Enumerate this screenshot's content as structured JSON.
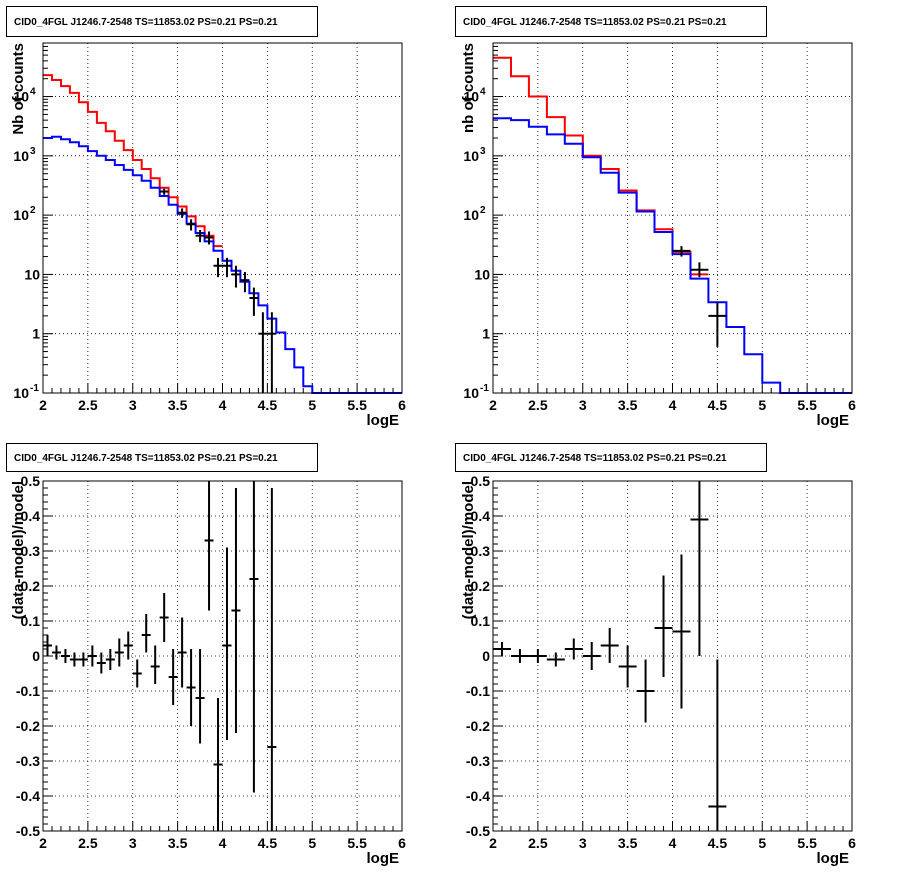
{
  "chart_data": [
    {
      "type": "line",
      "title": "CID0_4FGL J1246.7-2548 TS=11853.02 PS=0.21 PS=0.21",
      "xlabel": "logE",
      "ylabel": "Nb of counts",
      "xlim": [
        2,
        6
      ],
      "ylim": [
        0.1,
        80000
      ],
      "yscale": "log",
      "grid": true,
      "xticks": [
        "2",
        "2.5",
        "3",
        "3.5",
        "4",
        "4.5",
        "5",
        "5.5",
        "6"
      ],
      "yticks": [
        {
          "v": 0.1,
          "base": "10",
          "exp": "-1"
        },
        {
          "v": 1,
          "label": "1"
        },
        {
          "v": 10,
          "label": "10"
        },
        {
          "v": 100,
          "base": "10",
          "exp": "2"
        },
        {
          "v": 1000,
          "base": "10",
          "exp": "3"
        },
        {
          "v": 10000,
          "base": "10",
          "exp": "4"
        }
      ],
      "bin_width": 0.1,
      "series": [
        {
          "color": "#ff0000",
          "x": [
            2.0,
            2.1,
            2.2,
            2.3,
            2.4,
            2.5,
            2.6,
            2.7,
            2.8,
            2.9,
            3.0,
            3.1,
            3.2,
            3.3,
            3.4,
            3.5,
            3.6,
            3.7,
            3.8,
            3.9
          ],
          "values": [
            23000,
            19000,
            15000,
            11500,
            8000,
            5500,
            3600,
            2600,
            1800,
            1250,
            850,
            600,
            420,
            290,
            200,
            140,
            95,
            65,
            45,
            30
          ]
        },
        {
          "color": "#0000ff",
          "x": [
            2.0,
            2.1,
            2.2,
            2.3,
            2.4,
            2.5,
            2.6,
            2.7,
            2.8,
            2.9,
            3.0,
            3.1,
            3.2,
            3.3,
            3.4,
            3.5,
            3.6,
            3.7,
            3.8,
            3.9,
            4.0,
            4.1,
            4.2,
            4.3,
            4.4,
            4.5,
            4.6,
            4.7,
            4.8,
            4.9,
            5.0,
            5.1,
            5.2,
            5.3,
            5.4,
            5.5,
            5.6,
            5.7,
            5.8,
            5.9
          ],
          "values": [
            2000,
            2100,
            1900,
            1700,
            1450,
            1200,
            1000,
            850,
            700,
            580,
            470,
            380,
            290,
            210,
            150,
            105,
            72,
            50,
            36,
            25,
            17,
            11.5,
            7.5,
            4.8,
            3.0,
            1.8,
            1.05,
            0.55,
            0.27,
            0.13,
            0.1,
            0.1,
            0.1,
            0.1,
            0.1,
            0.1,
            0.1,
            0.1,
            0.1,
            0.1
          ]
        }
      ],
      "points": [
        {
          "x": 3.35,
          "y": 250,
          "lo": 220,
          "hi": 280
        },
        {
          "x": 3.55,
          "y": 110,
          "lo": 90,
          "hi": 130
        },
        {
          "x": 3.65,
          "y": 70,
          "lo": 55,
          "hi": 85
        },
        {
          "x": 3.75,
          "y": 45,
          "lo": 35,
          "hi": 56
        },
        {
          "x": 3.85,
          "y": 42,
          "lo": 32,
          "hi": 53
        },
        {
          "x": 3.95,
          "y": 14,
          "lo": 9,
          "hi": 19
        },
        {
          "x": 4.05,
          "y": 14,
          "lo": 9,
          "hi": 19
        },
        {
          "x": 4.15,
          "y": 10,
          "lo": 6,
          "hi": 14
        },
        {
          "x": 4.25,
          "y": 8,
          "lo": 5,
          "hi": 11
        },
        {
          "x": 4.35,
          "y": 4,
          "lo": 2,
          "hi": 6
        },
        {
          "x": 4.45,
          "y": 1,
          "lo": 0.1,
          "hi": 2.3
        },
        {
          "x": 4.55,
          "y": 1,
          "lo": 0.1,
          "hi": 2.3
        }
      ]
    },
    {
      "type": "line",
      "title": "CID0_4FGL J1246.7-2548 TS=11853.02 PS=0.21 PS=0.21",
      "xlabel": "logE",
      "ylabel": "nb of counts",
      "xlim": [
        2,
        6
      ],
      "ylim": [
        0.1,
        80000
      ],
      "yscale": "log",
      "grid": true,
      "xticks": [
        "2",
        "2.5",
        "3",
        "3.5",
        "4",
        "4.5",
        "5",
        "5.5",
        "6"
      ],
      "yticks": [
        {
          "v": 0.1,
          "base": "10",
          "exp": "-1"
        },
        {
          "v": 1,
          "label": "1"
        },
        {
          "v": 10,
          "label": "10"
        },
        {
          "v": 100,
          "base": "10",
          "exp": "2"
        },
        {
          "v": 1000,
          "base": "10",
          "exp": "3"
        },
        {
          "v": 10000,
          "base": "10",
          "exp": "4"
        }
      ],
      "bin_width": 0.2,
      "series": [
        {
          "color": "#ff0000",
          "x": [
            2.0,
            2.2,
            2.4,
            2.6,
            2.8,
            3.0,
            3.2,
            3.4,
            3.6,
            3.8,
            4.0,
            4.2
          ],
          "values": [
            45000,
            22000,
            10000,
            4500,
            2200,
            1000,
            600,
            260,
            120,
            58,
            24,
            10
          ]
        },
        {
          "color": "#0000ff",
          "x": [
            2.0,
            2.2,
            2.4,
            2.6,
            2.8,
            3.0,
            3.2,
            3.4,
            3.6,
            3.8,
            4.0,
            4.2,
            4.4,
            4.6,
            4.8,
            5.0,
            5.2,
            5.4,
            5.6,
            5.8
          ],
          "values": [
            4300,
            4000,
            3100,
            2300,
            1600,
            950,
            520,
            240,
            115,
            52,
            22,
            8.5,
            3.4,
            1.3,
            0.45,
            0.15,
            0.1,
            0.1,
            0.1,
            0.1
          ]
        }
      ],
      "points": [
        {
          "x": 4.1,
          "y": 25,
          "lo": 20,
          "hi": 30
        },
        {
          "x": 4.3,
          "y": 12,
          "lo": 9,
          "hi": 16
        },
        {
          "x": 4.5,
          "y": 2,
          "lo": 0.6,
          "hi": 3.4
        }
      ]
    },
    {
      "type": "scatter",
      "title": "CID0_4FGL J1246.7-2548 TS=11853.02 PS=0.21 PS=0.21",
      "xlabel": "logE",
      "ylabel": "(data-model)/model",
      "xlim": [
        2,
        6
      ],
      "ylim": [
        -0.5,
        0.5
      ],
      "grid": true,
      "xticks": [
        "2",
        "2.5",
        "3",
        "3.5",
        "4",
        "4.5",
        "5",
        "5.5",
        "6"
      ],
      "yticks": [
        "-0.5",
        "-0.4",
        "-0.3",
        "-0.2",
        "-0.1",
        "0",
        "0.1",
        "0.2",
        "0.3",
        "0.4",
        "0.5"
      ],
      "bin_width": 0.1,
      "points": [
        {
          "x": 2.05,
          "y": 0.03,
          "lo": 0.0,
          "hi": 0.06
        },
        {
          "x": 2.15,
          "y": 0.01,
          "lo": -0.01,
          "hi": 0.03
        },
        {
          "x": 2.25,
          "y": 0.0,
          "lo": -0.02,
          "hi": 0.02
        },
        {
          "x": 2.35,
          "y": -0.01,
          "lo": -0.03,
          "hi": 0.01
        },
        {
          "x": 2.45,
          "y": -0.01,
          "lo": -0.03,
          "hi": 0.01
        },
        {
          "x": 2.55,
          "y": 0.0,
          "lo": -0.03,
          "hi": 0.03
        },
        {
          "x": 2.65,
          "y": -0.02,
          "lo": -0.05,
          "hi": 0.01
        },
        {
          "x": 2.75,
          "y": -0.01,
          "lo": -0.04,
          "hi": 0.02
        },
        {
          "x": 2.85,
          "y": 0.01,
          "lo": -0.03,
          "hi": 0.05
        },
        {
          "x": 2.95,
          "y": 0.03,
          "lo": -0.01,
          "hi": 0.07
        },
        {
          "x": 3.05,
          "y": -0.05,
          "lo": -0.09,
          "hi": -0.01
        },
        {
          "x": 3.15,
          "y": 0.06,
          "lo": 0.01,
          "hi": 0.12
        },
        {
          "x": 3.25,
          "y": -0.03,
          "lo": -0.08,
          "hi": 0.03
        },
        {
          "x": 3.35,
          "y": 0.11,
          "lo": 0.04,
          "hi": 0.18
        },
        {
          "x": 3.45,
          "y": -0.06,
          "lo": -0.14,
          "hi": 0.02
        },
        {
          "x": 3.55,
          "y": 0.01,
          "lo": -0.09,
          "hi": 0.11
        },
        {
          "x": 3.65,
          "y": -0.09,
          "lo": -0.2,
          "hi": 0.02
        },
        {
          "x": 3.75,
          "y": -0.12,
          "lo": -0.25,
          "hi": 0.02
        },
        {
          "x": 3.85,
          "y": 0.33,
          "lo": 0.13,
          "hi": 0.5
        },
        {
          "x": 3.95,
          "y": -0.31,
          "lo": -0.5,
          "hi": -0.12
        },
        {
          "x": 4.05,
          "y": 0.03,
          "lo": -0.24,
          "hi": 0.31
        },
        {
          "x": 4.15,
          "y": 0.13,
          "lo": -0.22,
          "hi": 0.48
        },
        {
          "x": 4.35,
          "y": 0.22,
          "lo": -0.39,
          "hi": 0.5
        },
        {
          "x": 4.55,
          "y": -0.26,
          "lo": -0.5,
          "hi": 0.48
        }
      ]
    },
    {
      "type": "scatter",
      "title": "CID0_4FGL J1246.7-2548 TS=11853.02 PS=0.21 PS=0.21",
      "xlabel": "logE",
      "ylabel": "(data-model)/model",
      "xlim": [
        2,
        6
      ],
      "ylim": [
        -0.5,
        0.5
      ],
      "grid": true,
      "xticks": [
        "2",
        "2.5",
        "3",
        "3.5",
        "4",
        "4.5",
        "5",
        "5.5",
        "6"
      ],
      "yticks": [
        "-0.5",
        "-0.4",
        "-0.3",
        "-0.2",
        "-0.1",
        "0",
        "0.1",
        "0.2",
        "0.3",
        "0.4",
        "0.5"
      ],
      "bin_width": 0.2,
      "points": [
        {
          "x": 2.1,
          "y": 0.02,
          "lo": 0.0,
          "hi": 0.04
        },
        {
          "x": 2.3,
          "y": 0.0,
          "lo": -0.02,
          "hi": 0.02
        },
        {
          "x": 2.5,
          "y": 0.0,
          "lo": -0.02,
          "hi": 0.02
        },
        {
          "x": 2.7,
          "y": -0.01,
          "lo": -0.03,
          "hi": 0.01
        },
        {
          "x": 2.9,
          "y": 0.02,
          "lo": -0.01,
          "hi": 0.05
        },
        {
          "x": 3.1,
          "y": 0.0,
          "lo": -0.04,
          "hi": 0.04
        },
        {
          "x": 3.3,
          "y": 0.03,
          "lo": -0.02,
          "hi": 0.08
        },
        {
          "x": 3.5,
          "y": -0.03,
          "lo": -0.09,
          "hi": 0.03
        },
        {
          "x": 3.7,
          "y": -0.1,
          "lo": -0.19,
          "hi": -0.01
        },
        {
          "x": 3.9,
          "y": 0.08,
          "lo": -0.06,
          "hi": 0.23
        },
        {
          "x": 4.1,
          "y": 0.07,
          "lo": -0.15,
          "hi": 0.29
        },
        {
          "x": 4.3,
          "y": 0.39,
          "lo": 0.0,
          "hi": 0.5
        },
        {
          "x": 4.5,
          "y": -0.43,
          "lo": -0.5,
          "hi": -0.01
        }
      ]
    }
  ]
}
